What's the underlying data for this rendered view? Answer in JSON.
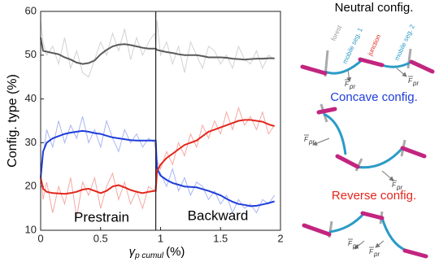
{
  "chart_data": {
    "type": "line",
    "y_label": "Config. type (%)",
    "x_label_symbol": "γ",
    "x_label_sub": "p cumul",
    "x_label_unit": "(%)",
    "x": [
      0,
      0.02,
      0.05,
      0.1,
      0.15,
      0.2,
      0.25,
      0.3,
      0.35,
      0.4,
      0.45,
      0.5,
      0.55,
      0.6,
      0.65,
      0.7,
      0.75,
      0.8,
      0.85,
      0.9,
      0.95,
      0.96,
      0.97,
      1.0,
      1.05,
      1.1,
      1.15,
      1.2,
      1.25,
      1.3,
      1.35,
      1.4,
      1.45,
      1.5,
      1.55,
      1.6,
      1.65,
      1.7,
      1.75,
      1.8,
      1.85,
      1.9,
      1.95
    ],
    "series": [
      {
        "style": "raw",
        "color": "#d2d2d2",
        "values": [
          58,
          53,
          50,
          52,
          48,
          54,
          47,
          51,
          46,
          45,
          49,
          53,
          50,
          55,
          51,
          56,
          49,
          54,
          50,
          53,
          55,
          52,
          58,
          50,
          53,
          48,
          52,
          46,
          53,
          50,
          47,
          52,
          51,
          48,
          50,
          47,
          52,
          49,
          48,
          51,
          47,
          50,
          49
        ]
      },
      {
        "style": "raw",
        "color": "#a9b6f2",
        "values": [
          21,
          27,
          33,
          29,
          35,
          30,
          34,
          31,
          36,
          30,
          33,
          29,
          35,
          31,
          28,
          33,
          30,
          32,
          29,
          31,
          30,
          28,
          25,
          23,
          20,
          24,
          19,
          22,
          18,
          21,
          20,
          17,
          19,
          16,
          18,
          14,
          17,
          15,
          16,
          14,
          17,
          16,
          18
        ]
      },
      {
        "style": "raw",
        "color": "#f3aaa3",
        "values": [
          24,
          17,
          21,
          14,
          20,
          16,
          22,
          13,
          21,
          18,
          22,
          15,
          20,
          23,
          17,
          21,
          16,
          19,
          15,
          20,
          19,
          21,
          26,
          24,
          28,
          25,
          30,
          27,
          32,
          29,
          34,
          31,
          35,
          32,
          37,
          33,
          38,
          34,
          36,
          33,
          37,
          32,
          34
        ]
      },
      {
        "style": "smooth",
        "color": "#5a5a5a",
        "values": [
          54,
          51,
          50.8,
          50.5,
          50.2,
          49.5,
          49,
          48.3,
          48,
          48.2,
          48.8,
          50.2,
          51.2,
          52,
          52.4,
          52.5,
          52.3,
          52,
          51.7,
          51.5,
          51.5,
          51.5,
          51.2,
          51,
          50.7,
          50.5,
          50.2,
          50,
          50,
          50,
          49.8,
          49.5,
          49.5,
          49.5,
          49.4,
          49.2,
          49.1,
          49,
          49.1,
          49.2,
          49.2,
          49.3,
          49.3
        ]
      },
      {
        "style": "smooth",
        "color": "#1e3ddb",
        "values": [
          22,
          28,
          30,
          31,
          31.5,
          32,
          32.3,
          32.5,
          32.7,
          32.5,
          32.2,
          32,
          31.6,
          31.2,
          31,
          30.8,
          30.6,
          30.5,
          30.5,
          30.5,
          30.5,
          30.5,
          24,
          22.5,
          21.5,
          20.8,
          20.4,
          20,
          19.9,
          19.8,
          19.4,
          19,
          18.5,
          18,
          17.2,
          16.5,
          16,
          15.8,
          15.5,
          15.6,
          15.9,
          16.2,
          16.6
        ]
      },
      {
        "style": "smooth",
        "color": "#e3261c",
        "values": [
          22,
          19.5,
          18.8,
          18.5,
          18.4,
          18.3,
          18.5,
          18.8,
          19.3,
          19.5,
          19,
          18.5,
          19,
          20,
          20.3,
          19.8,
          19.2,
          18.8,
          18.5,
          18.8,
          19,
          19,
          23.5,
          25,
          26.5,
          27.5,
          28.5,
          29.5,
          30,
          30.5,
          31.5,
          32.5,
          33,
          33.5,
          34,
          34.5,
          35,
          35.2,
          35.2,
          35,
          34.8,
          34.2,
          33.8
        ]
      }
    ],
    "vline_x": 0.96,
    "phase_labels": [
      "Prestrain",
      "Backward"
    ],
    "xlim": [
      0,
      2
    ],
    "xticks": [
      0,
      0.5,
      1,
      1.5,
      2
    ],
    "ylim": [
      10,
      60
    ],
    "yticks": [
      10,
      20,
      30,
      40,
      50,
      60
    ]
  },
  "diagram": {
    "panels": [
      {
        "title": "Neutral config.",
        "color": "#000000"
      },
      {
        "title": "Concave config.",
        "color": "#1e3ddb"
      },
      {
        "title": "Reverse config.",
        "color": "#e3261c"
      }
    ],
    "labels": {
      "forest": "forest",
      "seg1": "mobile seg. 1",
      "junction": "junction",
      "seg2": "mobile seg. 2"
    },
    "force_symbol": "F",
    "force_sub": "pr"
  }
}
